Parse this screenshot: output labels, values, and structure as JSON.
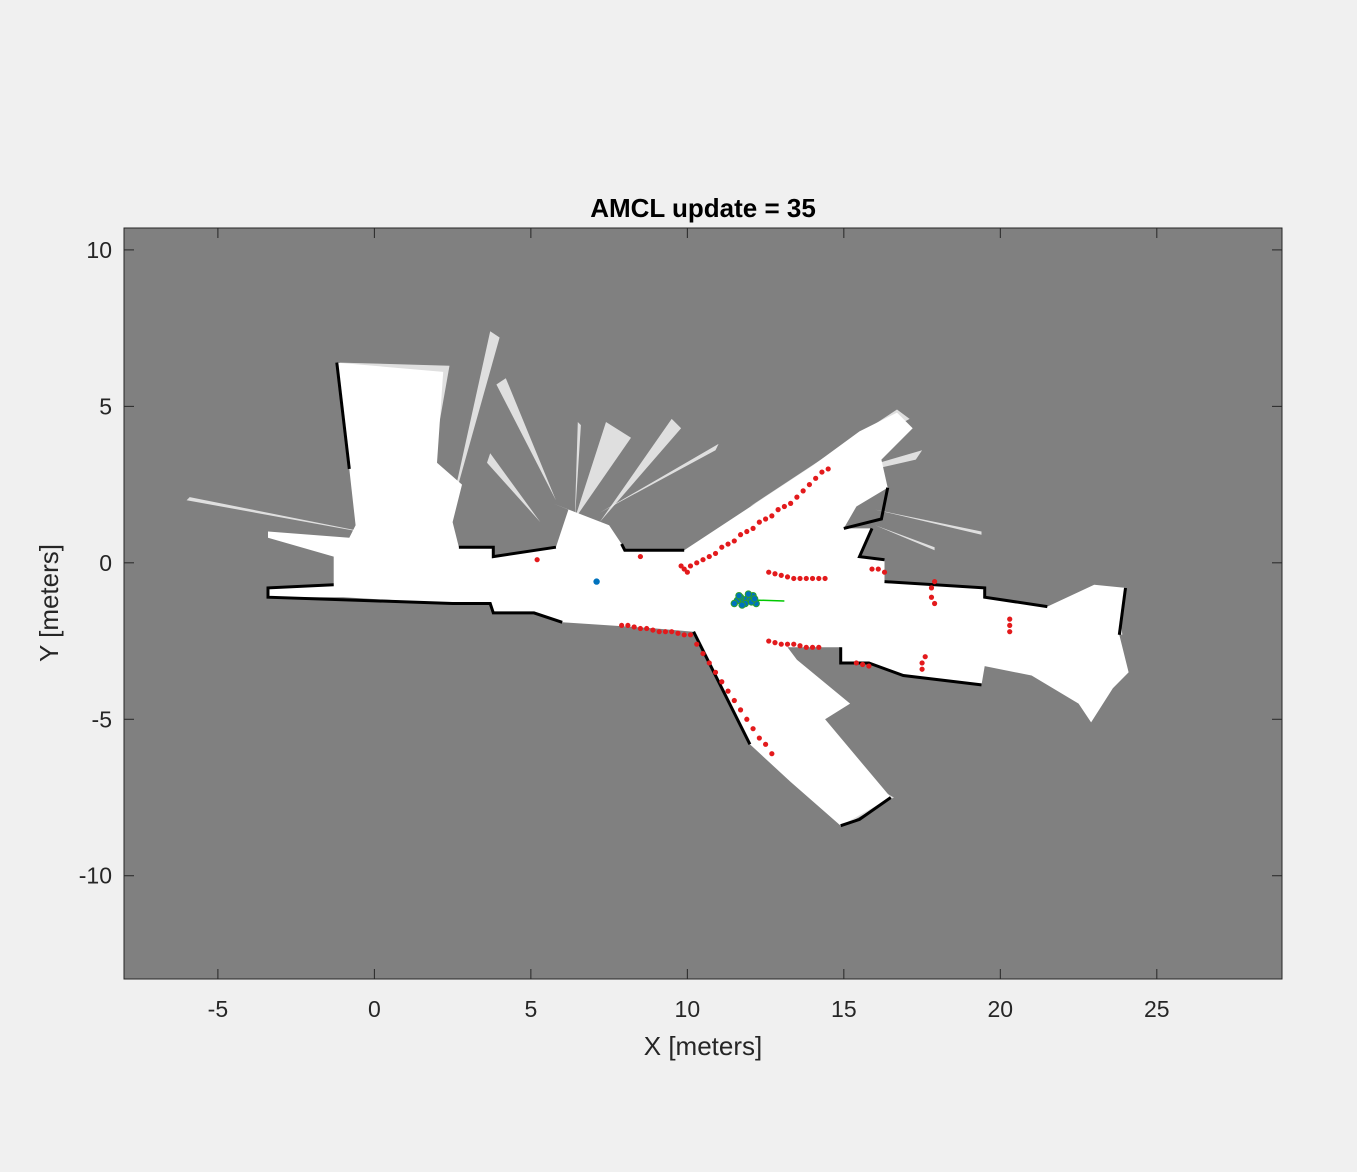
{
  "chart_data": {
    "type": "scatter",
    "title": "AMCL update = 35",
    "xlabel": "X [meters]",
    "ylabel": "Y [meters]",
    "xlim": [
      -8,
      29
    ],
    "ylim": [
      -13.3,
      10.7
    ],
    "xticks": [
      -5,
      0,
      5,
      10,
      15,
      20,
      25
    ],
    "yticks": [
      -10,
      -5,
      0,
      5,
      10
    ],
    "xtick_labels": [
      "-5",
      "0",
      "5",
      "10",
      "15",
      "20",
      "25"
    ],
    "ytick_labels": [
      "-10",
      "-5",
      "0",
      "5",
      "10"
    ],
    "grid": false,
    "colors": {
      "unknown_space": "#808080",
      "free_space": "#ffffff",
      "obstacle": "#000000",
      "laser_scan": "#e31a1c",
      "particles": "#0072bd",
      "particle_outline": "#2ca02c",
      "estimated_heading": "#00c800",
      "figure_background": "#f0f0f0"
    },
    "map_regions": {
      "free_space_polygons": [
        [
          [
            -3.4,
            -1.1
          ],
          [
            -3.4,
            -0.8
          ],
          [
            -1.3,
            -0.7
          ],
          [
            -1.3,
            0.2
          ],
          [
            -3.4,
            0.8
          ],
          [
            -3.4,
            1.0
          ],
          [
            -0.8,
            0.8
          ],
          [
            -0.6,
            1.2
          ],
          [
            -0.8,
            3.0
          ],
          [
            -1.2,
            6.4
          ],
          [
            2.2,
            6.1
          ],
          [
            2.0,
            3.2
          ],
          [
            2.8,
            2.5
          ],
          [
            2.5,
            1.3
          ],
          [
            2.7,
            0.5
          ],
          [
            3.8,
            0.5
          ],
          [
            3.8,
            0.2
          ],
          [
            5.8,
            0.5
          ],
          [
            6.2,
            1.7
          ],
          [
            5.7,
            1.9
          ],
          [
            7.5,
            1.2
          ],
          [
            7.9,
            0.6
          ],
          [
            8.0,
            0.4
          ],
          [
            9.9,
            0.4
          ],
          [
            14.0,
            3.1
          ],
          [
            15.5,
            4.2
          ],
          [
            16.7,
            4.8
          ],
          [
            17.2,
            4.3
          ],
          [
            16.2,
            3.3
          ],
          [
            16.4,
            2.4
          ],
          [
            15.4,
            1.8
          ],
          [
            15.0,
            1.1
          ],
          [
            15.9,
            1.1
          ],
          [
            15.5,
            0.2
          ],
          [
            16.3,
            0.1
          ],
          [
            16.3,
            -0.6
          ],
          [
            19.5,
            -0.8
          ],
          [
            19.5,
            -1.1
          ],
          [
            21.5,
            -1.4
          ],
          [
            23.0,
            -0.7
          ],
          [
            24.0,
            -0.8
          ],
          [
            23.8,
            -2.3
          ],
          [
            24.1,
            -3.5
          ],
          [
            23.6,
            -4.0
          ],
          [
            22.9,
            -5.1
          ],
          [
            22.5,
            -4.5
          ],
          [
            21.0,
            -3.6
          ],
          [
            19.5,
            -3.3
          ],
          [
            19.4,
            -3.9
          ],
          [
            16.9,
            -3.6
          ],
          [
            15.8,
            -3.2
          ],
          [
            14.9,
            -3.2
          ],
          [
            14.9,
            -2.7
          ],
          [
            13.2,
            -2.7
          ],
          [
            13.5,
            -3.1
          ],
          [
            15.2,
            -4.5
          ],
          [
            14.4,
            -5.0
          ],
          [
            16.5,
            -7.5
          ],
          [
            14.9,
            -8.4
          ],
          [
            13.3,
            -7.0
          ],
          [
            12.0,
            -5.8
          ],
          [
            10.2,
            -2.2
          ],
          [
            9.0,
            -2.1
          ],
          [
            6.0,
            -1.9
          ],
          [
            5.1,
            -1.6
          ],
          [
            3.8,
            -1.6
          ],
          [
            3.7,
            -1.3
          ],
          [
            2.5,
            -1.3
          ],
          [
            -1.0,
            -1.1
          ],
          [
            -3.4,
            -1.1
          ]
        ]
      ],
      "scan_fans": [
        [
          [
            1.5,
            1.2
          ],
          [
            -1.1,
            6.4
          ],
          [
            2.4,
            6.3
          ]
        ],
        [
          [
            2.4,
            1.5
          ],
          [
            3.7,
            7.4
          ],
          [
            4.0,
            7.2
          ]
        ],
        [
          [
            5.8,
            2.0
          ],
          [
            3.9,
            5.7
          ],
          [
            4.2,
            5.9
          ]
        ],
        [
          [
            6.4,
            1.3
          ],
          [
            6.5,
            4.5
          ],
          [
            6.6,
            4.4
          ]
        ],
        [
          [
            6.4,
            1.4
          ],
          [
            7.4,
            4.5
          ],
          [
            8.2,
            4.0
          ]
        ],
        [
          [
            7.2,
            1.3
          ],
          [
            9.5,
            4.6
          ],
          [
            9.8,
            4.3
          ]
        ],
        [
          [
            7.2,
            1.6
          ],
          [
            11.0,
            3.8
          ],
          [
            10.9,
            3.6
          ]
        ],
        [
          [
            5.3,
            1.3
          ],
          [
            3.6,
            3.2
          ],
          [
            3.7,
            3.5
          ]
        ],
        [
          [
            12.0,
            1.8
          ],
          [
            16.7,
            4.9
          ],
          [
            17.1,
            4.6
          ]
        ],
        [
          [
            13.4,
            2.4
          ],
          [
            17.5,
            3.6
          ],
          [
            17.3,
            3.3
          ]
        ],
        [
          [
            0.6,
            0.8
          ],
          [
            -6.0,
            2.0
          ],
          [
            -5.9,
            2.1
          ]
        ],
        [
          [
            12.4,
            -5.1
          ],
          [
            15.0,
            -8.4
          ],
          [
            16.6,
            -7.5
          ]
        ],
        [
          [
            20.6,
            -2.1
          ],
          [
            23.7,
            -0.8
          ],
          [
            23.9,
            -2.3
          ]
        ],
        [
          [
            20.6,
            -2.1
          ],
          [
            24.1,
            -3.5
          ],
          [
            23.6,
            -4.0
          ]
        ],
        [
          [
            16.0,
            1.7
          ],
          [
            19.4,
            1.0
          ],
          [
            19.4,
            0.9
          ]
        ],
        [
          [
            16.0,
            1.2
          ],
          [
            17.9,
            0.5
          ],
          [
            17.9,
            0.4
          ]
        ]
      ],
      "obstacle_edges": [
        [
          [
            -1.3,
            -0.7
          ],
          [
            -3.4,
            -0.8
          ],
          [
            -3.4,
            -1.1
          ],
          [
            2.5,
            -1.3
          ],
          [
            3.7,
            -1.3
          ],
          [
            3.8,
            -1.6
          ],
          [
            5.1,
            -1.6
          ],
          [
            6.0,
            -1.9
          ]
        ],
        [
          [
            9.9,
            0.4
          ],
          [
            8.0,
            0.4
          ],
          [
            7.9,
            0.6
          ]
        ],
        [
          [
            5.8,
            0.5
          ],
          [
            3.8,
            0.2
          ],
          [
            3.8,
            0.5
          ],
          [
            2.7,
            0.5
          ]
        ],
        [
          [
            -1.2,
            6.4
          ],
          [
            -0.8,
            3.0
          ]
        ],
        [
          [
            16.3,
            0.1
          ],
          [
            15.5,
            0.2
          ],
          [
            15.9,
            1.1
          ]
        ],
        [
          [
            16.3,
            -0.6
          ],
          [
            19.5,
            -0.8
          ],
          [
            19.5,
            -1.1
          ],
          [
            21.5,
            -1.4
          ]
        ],
        [
          [
            19.4,
            -3.9
          ],
          [
            16.9,
            -3.6
          ],
          [
            15.8,
            -3.2
          ],
          [
            14.9,
            -3.2
          ],
          [
            14.9,
            -2.7
          ]
        ],
        [
          [
            12.0,
            -5.8
          ],
          [
            10.2,
            -2.2
          ]
        ],
        [
          [
            15.0,
            1.1
          ],
          [
            16.2,
            1.4
          ],
          [
            16.4,
            2.4
          ]
        ],
        [
          [
            23.8,
            -2.3
          ],
          [
            24.0,
            -0.8
          ]
        ],
        [
          [
            14.9,
            -8.4
          ],
          [
            15.5,
            -8.2
          ],
          [
            16.5,
            -7.5
          ]
        ]
      ]
    },
    "series": [
      {
        "type": "scan",
        "points": [
          [
            9.8,
            -0.1
          ],
          [
            9.9,
            -0.2
          ],
          [
            10.0,
            -0.3
          ],
          [
            10.1,
            -0.1
          ],
          [
            10.3,
            0.0
          ],
          [
            10.5,
            0.1
          ],
          [
            10.7,
            0.2
          ],
          [
            10.9,
            0.3
          ],
          [
            11.1,
            0.5
          ],
          [
            11.3,
            0.6
          ],
          [
            11.5,
            0.7
          ],
          [
            11.7,
            0.9
          ],
          [
            11.9,
            1.0
          ],
          [
            12.1,
            1.1
          ],
          [
            12.3,
            1.3
          ],
          [
            12.5,
            1.4
          ],
          [
            12.7,
            1.5
          ],
          [
            12.9,
            1.7
          ],
          [
            13.1,
            1.8
          ],
          [
            13.3,
            1.9
          ],
          [
            13.5,
            2.1
          ],
          [
            13.7,
            2.3
          ],
          [
            13.9,
            2.5
          ],
          [
            14.1,
            2.7
          ],
          [
            14.3,
            2.9
          ],
          [
            14.5,
            3.0
          ],
          [
            12.6,
            -0.3
          ],
          [
            12.8,
            -0.35
          ],
          [
            13.0,
            -0.4
          ],
          [
            13.2,
            -0.45
          ],
          [
            13.4,
            -0.5
          ],
          [
            13.6,
            -0.5
          ],
          [
            13.8,
            -0.5
          ],
          [
            14.0,
            -0.5
          ],
          [
            14.2,
            -0.5
          ],
          [
            14.4,
            -0.5
          ],
          [
            5.2,
            0.1
          ],
          [
            8.5,
            0.2
          ],
          [
            15.9,
            -0.2
          ],
          [
            16.1,
            -0.2
          ],
          [
            16.3,
            -0.3
          ],
          [
            17.9,
            -0.6
          ],
          [
            17.8,
            -0.8
          ],
          [
            17.8,
            -1.1
          ],
          [
            17.9,
            -1.3
          ],
          [
            20.3,
            -1.8
          ],
          [
            20.3,
            -2.0
          ],
          [
            20.3,
            -2.2
          ],
          [
            7.9,
            -2.0
          ],
          [
            8.1,
            -2.0
          ],
          [
            8.3,
            -2.05
          ],
          [
            8.5,
            -2.1
          ],
          [
            8.7,
            -2.1
          ],
          [
            8.9,
            -2.15
          ],
          [
            9.1,
            -2.2
          ],
          [
            9.3,
            -2.2
          ],
          [
            9.5,
            -2.2
          ],
          [
            9.7,
            -2.25
          ],
          [
            9.9,
            -2.3
          ],
          [
            10.1,
            -2.3
          ],
          [
            10.3,
            -2.6
          ],
          [
            10.5,
            -2.9
          ],
          [
            10.7,
            -3.2
          ],
          [
            10.9,
            -3.5
          ],
          [
            11.1,
            -3.8
          ],
          [
            11.3,
            -4.1
          ],
          [
            11.5,
            -4.4
          ],
          [
            11.7,
            -4.7
          ],
          [
            11.9,
            -5.0
          ],
          [
            12.1,
            -5.3
          ],
          [
            12.3,
            -5.6
          ],
          [
            12.5,
            -5.8
          ],
          [
            12.7,
            -6.1
          ],
          [
            12.6,
            -2.5
          ],
          [
            12.8,
            -2.55
          ],
          [
            13.0,
            -2.6
          ],
          [
            13.2,
            -2.6
          ],
          [
            13.4,
            -2.6
          ],
          [
            13.6,
            -2.65
          ],
          [
            13.8,
            -2.7
          ],
          [
            14.0,
            -2.7
          ],
          [
            14.2,
            -2.7
          ],
          [
            15.4,
            -3.2
          ],
          [
            15.6,
            -3.25
          ],
          [
            15.8,
            -3.3
          ],
          [
            17.6,
            -3.0
          ],
          [
            17.5,
            -3.2
          ],
          [
            17.5,
            -3.4
          ]
        ]
      },
      {
        "type": "particles",
        "points": [
          [
            7.1,
            -0.6
          ],
          [
            11.6,
            -1.2
          ],
          [
            11.7,
            -1.1
          ],
          [
            11.8,
            -1.25
          ],
          [
            11.9,
            -1.15
          ],
          [
            12.0,
            -1.2
          ],
          [
            12.1,
            -1.05
          ],
          [
            12.2,
            -1.3
          ],
          [
            11.85,
            -1.3
          ],
          [
            11.95,
            -1.0
          ],
          [
            11.5,
            -1.3
          ],
          [
            11.75,
            -1.35
          ],
          [
            12.05,
            -1.25
          ],
          [
            12.15,
            -1.15
          ],
          [
            11.65,
            -1.05
          ]
        ]
      },
      {
        "type": "heading",
        "points": [
          [
            11.8,
            -1.18
          ],
          [
            13.1,
            -1.22
          ]
        ]
      }
    ]
  }
}
